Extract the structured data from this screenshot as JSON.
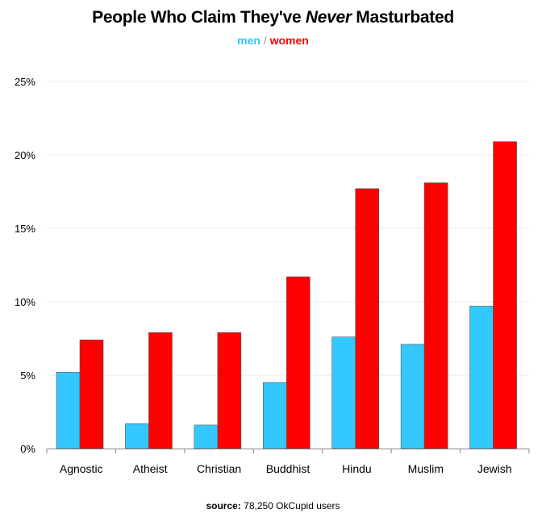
{
  "title_prefix": "People Who Claim They've ",
  "title_emphasis": "Never",
  "title_suffix": " Masturbated",
  "legend": {
    "men": "men",
    "separator": "/",
    "women": "women"
  },
  "source": {
    "label": "source:",
    "text": "78,250 OkCupid users"
  },
  "colors": {
    "men": "#33c8ff",
    "women": "#ff0000",
    "grid": "#e8e8e8",
    "axis": "#888888"
  },
  "chart_data": {
    "type": "bar",
    "title": "People Who Claim They've Never Masturbated",
    "categories": [
      "Agnostic",
      "Atheist",
      "Christian",
      "Buddhist",
      "Hindu",
      "Muslim",
      "Jewish"
    ],
    "series": [
      {
        "name": "men",
        "values": [
          5.2,
          1.7,
          1.6,
          4.5,
          7.6,
          7.1,
          9.7
        ]
      },
      {
        "name": "women",
        "values": [
          7.4,
          7.9,
          7.9,
          11.7,
          17.7,
          18.1,
          20.9
        ]
      }
    ],
    "yticks": [
      "0%",
      "5%",
      "10%",
      "15%",
      "20%",
      "25%"
    ],
    "ytick_values": [
      0,
      5,
      10,
      15,
      20,
      25
    ],
    "ylim": [
      0,
      25
    ],
    "xlabel": "",
    "ylabel": "",
    "grid": true,
    "legend_position": "top-center"
  }
}
